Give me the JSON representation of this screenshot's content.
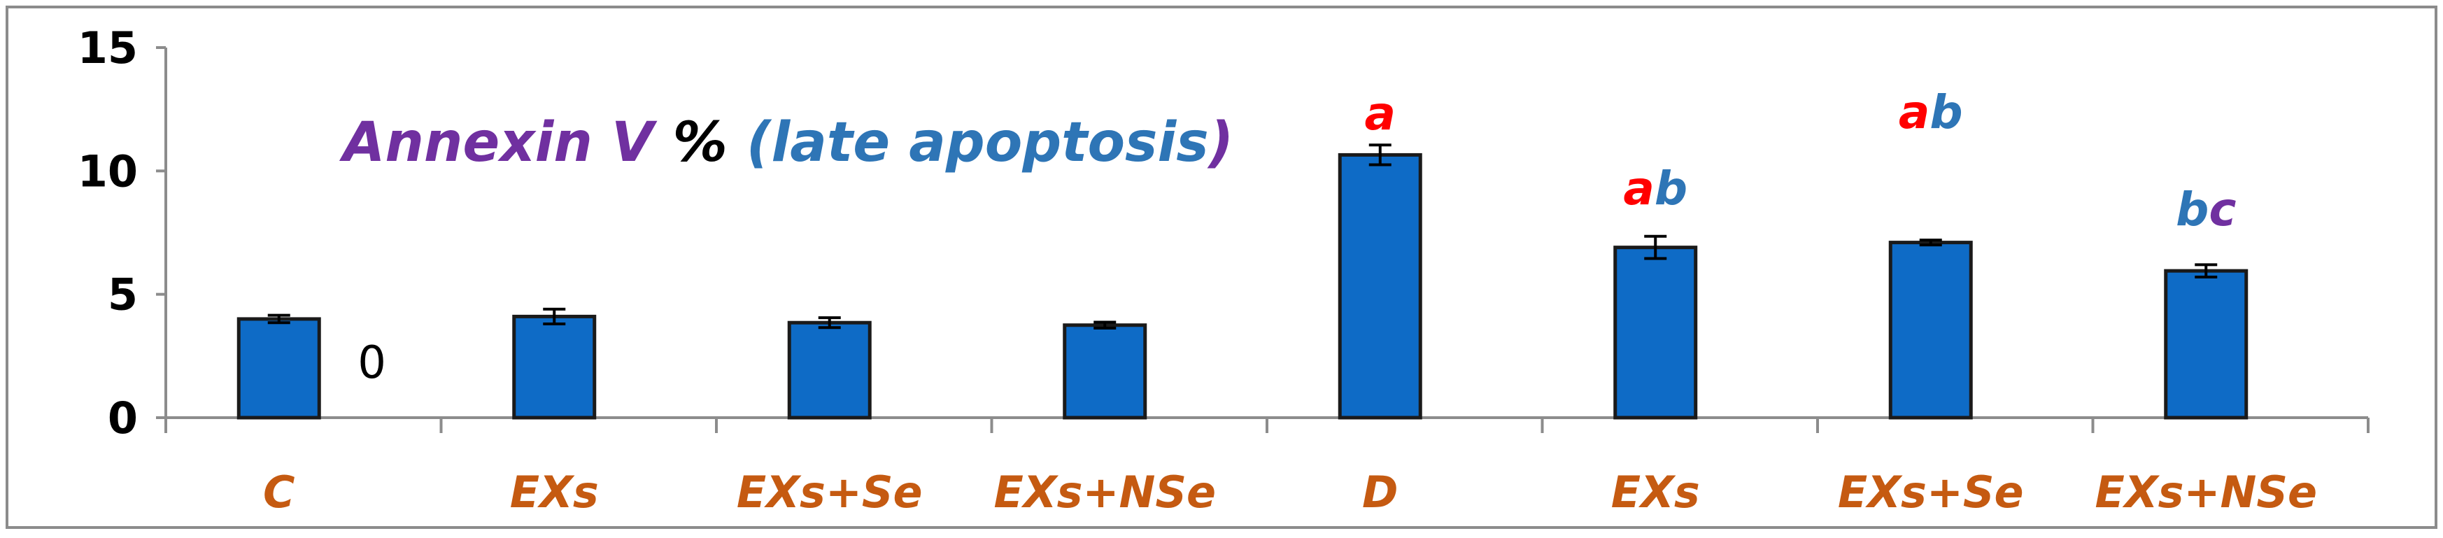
{
  "chart_data": {
    "type": "bar",
    "title_parts": [
      {
        "text": "Annexin V ",
        "color": "#7030A0"
      },
      {
        "text": "% ",
        "color": "#000000"
      },
      {
        "text": "(late apoptosis",
        "color": "#2E75B6"
      },
      {
        "text": ")",
        "color": "#7030A0"
      }
    ],
    "categories": [
      "C",
      "EXs",
      "EXs+Se",
      "EXs+NSe",
      "D",
      "EXs",
      "EXs+Se",
      "EXs+NSe"
    ],
    "values": [
      4.0,
      4.1,
      3.85,
      3.75,
      10.65,
      6.9,
      7.1,
      5.95
    ],
    "errors": [
      0.15,
      0.3,
      0.2,
      0.12,
      0.4,
      0.45,
      0.1,
      0.25
    ],
    "ylim": [
      0,
      15
    ],
    "yticks": [
      0,
      5,
      10,
      15
    ],
    "grid": false,
    "bar_color": "#0E6BC6",
    "category_color": "#C55A11",
    "annotations": [
      {
        "category_index": 0,
        "parts": [
          {
            "text": "0",
            "color": "#000000"
          }
        ]
      },
      {
        "category_index": 4,
        "parts": [
          {
            "text": "a",
            "color": "#FF0000"
          }
        ]
      },
      {
        "category_index": 5,
        "parts": [
          {
            "text": "a",
            "color": "#FF0000"
          },
          {
            "text": "b",
            "color": "#2E75B6"
          }
        ]
      },
      {
        "category_index": 6,
        "parts": [
          {
            "text": "a",
            "color": "#FF0000"
          },
          {
            "text": "b",
            "color": "#2E75B6"
          }
        ]
      },
      {
        "category_index": 7,
        "parts": [
          {
            "text": "b",
            "color": "#2E75B6"
          },
          {
            "text": "c",
            "color": "#7030A0"
          }
        ]
      }
    ]
  }
}
